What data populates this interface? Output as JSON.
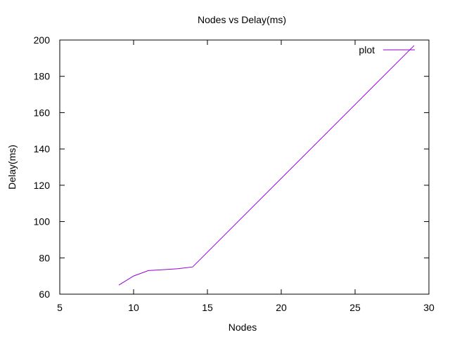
{
  "chart_data": {
    "type": "line",
    "title": "Nodes vs Delay(ms)",
    "xlabel": "Nodes",
    "ylabel": "Delay(ms)",
    "xlim": [
      5,
      30
    ],
    "ylim": [
      60,
      200
    ],
    "xticks": [
      5,
      10,
      15,
      20,
      25,
      30
    ],
    "yticks": [
      60,
      80,
      100,
      120,
      140,
      160,
      180,
      200
    ],
    "grid": false,
    "legend_position": "top-right",
    "series": [
      {
        "name": "plot",
        "color": "#9400d3",
        "x": [
          9,
          10,
          11,
          12,
          13,
          14,
          29
        ],
        "y": [
          65,
          70,
          73,
          73.5,
          74,
          75,
          197
        ]
      }
    ]
  }
}
